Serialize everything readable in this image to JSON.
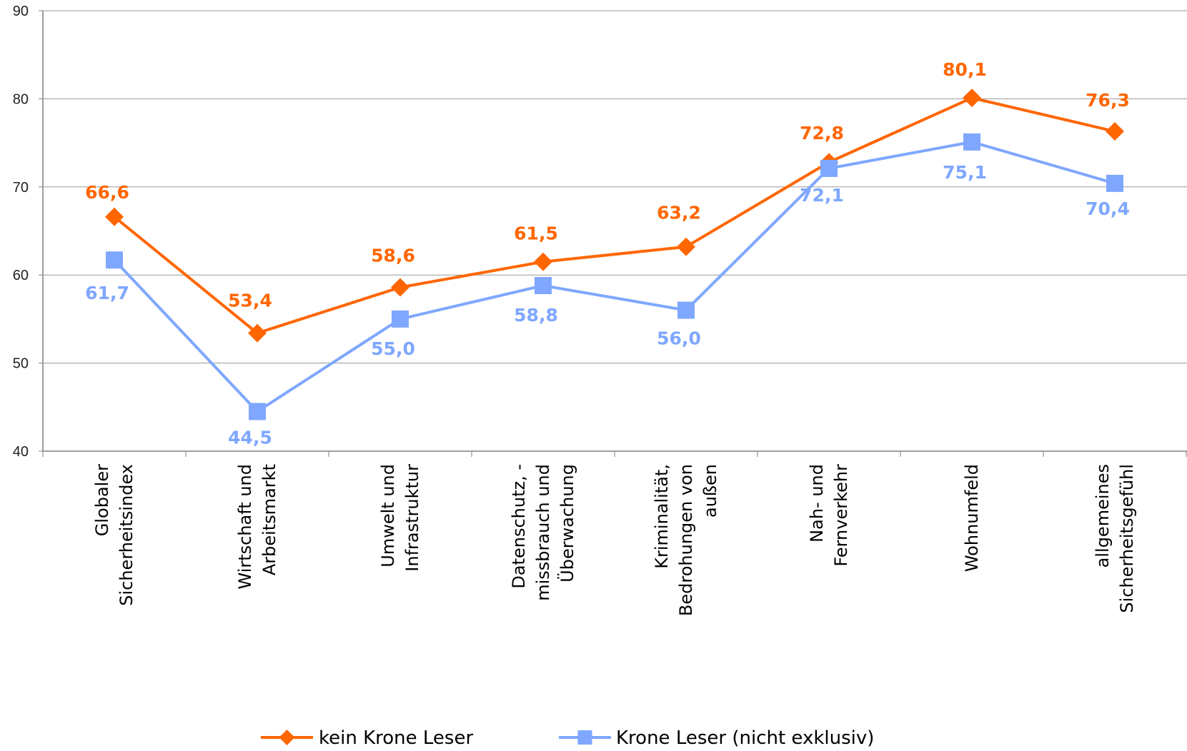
{
  "chart_data": {
    "type": "line",
    "categories": [
      [
        "Globaler",
        "Sicherheitsindex"
      ],
      [
        "Wirtschaft und",
        "Arbeitsmarkt"
      ],
      [
        "Umwelt und",
        "Infrastruktur"
      ],
      [
        "Datenschutz, -",
        "missbrauch und",
        "Überwachung"
      ],
      [
        "Kriminalität,",
        "Bedrohungen von",
        "außen"
      ],
      [
        "Nah- und",
        "Fernverkehr"
      ],
      [
        "Wohnumfeld"
      ],
      [
        "allgemeines",
        "Sicherheitsgefühl"
      ]
    ],
    "ylim": [
      40,
      90
    ],
    "yticks": [
      40,
      50,
      60,
      70,
      80,
      90
    ],
    "grid": true,
    "legend_position": "bottom",
    "series": [
      {
        "name": "kein Krone Leser",
        "color": "#FF6600",
        "marker": "diamond",
        "values": [
          66.6,
          53.4,
          58.6,
          61.5,
          63.2,
          72.8,
          80.1,
          76.3
        ],
        "labels": [
          "66,6",
          "53,4",
          "58,6",
          "61,5",
          "63,2",
          "72,8",
          "80,1",
          "76,3"
        ]
      },
      {
        "name": "Krone Leser (nicht exklusiv)",
        "color": "#7FA7FF",
        "marker": "square",
        "values": [
          61.7,
          44.5,
          55.0,
          58.8,
          56.0,
          72.1,
          75.1,
          70.4
        ],
        "labels": [
          "61,7",
          "44,5",
          "55,0",
          "58,8",
          "56,0",
          "72,1",
          "75,1",
          "70,4"
        ]
      }
    ]
  }
}
